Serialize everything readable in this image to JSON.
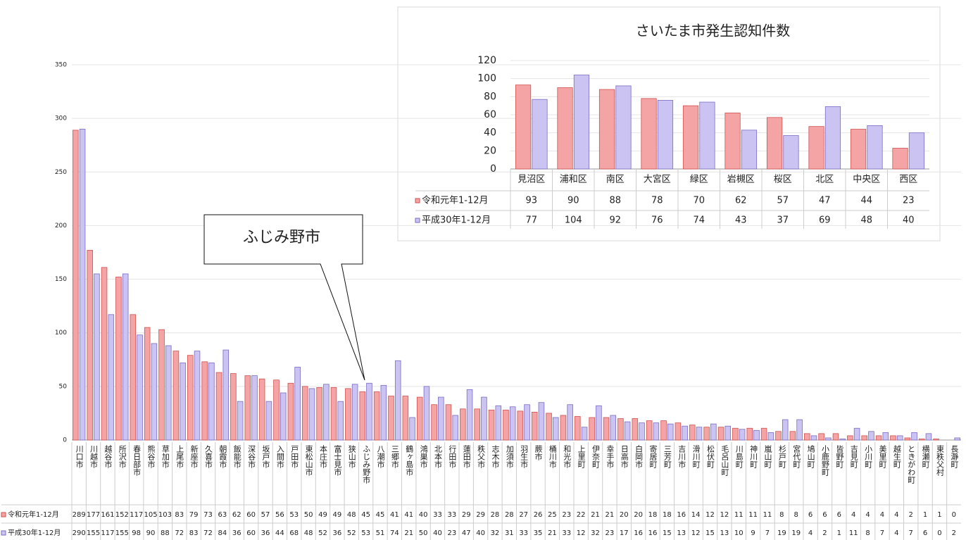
{
  "chart_data": [
    {
      "type": "bar",
      "annotation": "ふじみ野市",
      "categories": [
        "川口市",
        "川越市",
        "越谷市",
        "所沢市",
        "春日部市",
        "熊谷市",
        "草加市",
        "上尾市",
        "新座市",
        "久喜市",
        "朝霞市",
        "飯能市",
        "深谷市",
        "坂戸市",
        "入間市",
        "戸田市",
        "東松山市",
        "本庄市",
        "富士見市",
        "狭山市",
        "ふじみ野市",
        "八潮市",
        "三郷市",
        "鶴ヶ島市",
        "鴻巣市",
        "北本市",
        "行田市",
        "蓮田市",
        "秩父市",
        "志木市",
        "加須市",
        "羽生市",
        "蕨市",
        "桶川市",
        "和光市",
        "上里町",
        "伊奈町",
        "幸手市",
        "日高市",
        "白岡市",
        "寄居町",
        "三芳町",
        "吉川市",
        "滑川町",
        "松伏町",
        "毛呂山町",
        "川島町",
        "神川町",
        "嵐山町",
        "杉戸町",
        "宮代町",
        "鳩山町",
        "小鹿野町",
        "皆野町",
        "吉見町",
        "小川町",
        "美里町",
        "越生町",
        "ときがわ町",
        "横瀬町",
        "東秩父村",
        "長瀞町"
      ],
      "series": [
        {
          "name": "令和元年1-12月",
          "color": "#f4a4a4",
          "values": [
            289,
            177,
            161,
            152,
            117,
            105,
            103,
            83,
            79,
            73,
            63,
            62,
            60,
            57,
            56,
            53,
            50,
            49,
            49,
            48,
            45,
            45,
            41,
            41,
            40,
            33,
            33,
            29,
            29,
            28,
            28,
            27,
            26,
            25,
            23,
            22,
            21,
            21,
            20,
            20,
            18,
            18,
            16,
            14,
            12,
            12,
            11,
            11,
            11,
            8,
            8,
            6,
            6,
            6,
            4,
            4,
            4,
            4,
            2,
            1,
            1,
            0
          ]
        },
        {
          "name": "平成30年1-12月",
          "color": "#cbc4f2",
          "values": [
            290,
            155,
            117,
            155,
            98,
            90,
            88,
            72,
            83,
            72,
            84,
            36,
            60,
            36,
            44,
            68,
            48,
            52,
            36,
            52,
            53,
            51,
            74,
            21,
            50,
            40,
            23,
            47,
            40,
            32,
            31,
            33,
            35,
            21,
            33,
            12,
            32,
            23,
            17,
            16,
            16,
            15,
            13,
            12,
            15,
            13,
            10,
            9,
            7,
            19,
            19,
            4,
            2,
            1,
            11,
            8,
            7,
            4,
            7,
            6,
            0,
            2
          ]
        }
      ],
      "ylim": [
        0,
        350
      ],
      "yticks": [
        0,
        50,
        100,
        150,
        200,
        250,
        300,
        350
      ],
      "grid": true
    },
    {
      "type": "bar",
      "title": "さいたま市発生認知件数",
      "categories": [
        "見沼区",
        "浦和区",
        "南区",
        "大宮区",
        "緑区",
        "岩槻区",
        "桜区",
        "北区",
        "中央区",
        "西区"
      ],
      "series": [
        {
          "name": "令和元年1-12月",
          "color": "#f4a4a4",
          "values": [
            93,
            90,
            88,
            78,
            70,
            62,
            57,
            47,
            44,
            23
          ]
        },
        {
          "name": "平成30年1-12月",
          "color": "#cbc4f2",
          "values": [
            77,
            104,
            92,
            76,
            74,
            43,
            37,
            69,
            48,
            40
          ]
        }
      ],
      "ylim": [
        0,
        120
      ],
      "yticks": [
        0,
        20,
        40,
        60,
        80,
        100,
        120
      ],
      "grid": true
    }
  ]
}
